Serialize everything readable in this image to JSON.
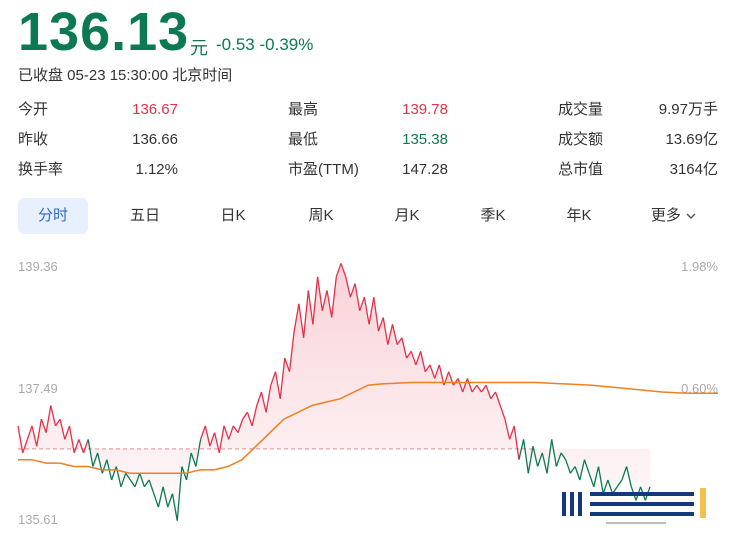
{
  "quote": {
    "price": "136.13",
    "unit": "元",
    "change": "-0.53",
    "change_pct": "-0.39%",
    "status": "已收盘 05-23 15:30:00 北京时间"
  },
  "stats": [
    {
      "label": "今开",
      "value": "136.67"
    },
    {
      "label": "最高",
      "value": "139.78"
    },
    {
      "label": "成交量",
      "value": "9.97万手"
    },
    {
      "label": "昨收",
      "value": "136.66"
    },
    {
      "label": "最低",
      "value": "135.38"
    },
    {
      "label": "成交额",
      "value": "13.69亿"
    },
    {
      "label": "换手率",
      "value": "1.12%"
    },
    {
      "label": "市盈(TTM)",
      "value": "147.28"
    },
    {
      "label": "总市值",
      "value": "3164亿"
    }
  ],
  "tabs": [
    "分时",
    "五日",
    "日K",
    "周K",
    "月K",
    "季K",
    "年K",
    "更多"
  ],
  "colors": {
    "up": "#e2314a",
    "down": "#0b7a52",
    "avg": "#f07f1f",
    "tab_active": "#2f68d8"
  },
  "chart_data": {
    "type": "line",
    "y_left_ticks": [
      "139.36",
      "137.49",
      "135.61"
    ],
    "y_right_ticks": [
      "1.98%",
      "0.60%"
    ],
    "ylim": [
      135.61,
      139.36
    ],
    "prev_close": 136.66,
    "series": [
      {
        "values": [
          137.0,
          136.6,
          136.8,
          137.0,
          136.7,
          137.1,
          136.9,
          137.3,
          137.0,
          137.1,
          136.8,
          137.0,
          136.6,
          136.8,
          136.6,
          136.8,
          136.4,
          136.6,
          136.3,
          136.5,
          136.2,
          136.4,
          136.1,
          136.3,
          136.2,
          136.1,
          136.3,
          136.1,
          136.2,
          136.0,
          135.8,
          136.1,
          135.8,
          136.0,
          135.6,
          136.4,
          136.2,
          136.6,
          136.4,
          136.8,
          137.0,
          136.7,
          136.9,
          136.6,
          137.0,
          136.8,
          137.0,
          136.9,
          137.1,
          137.2,
          137.0,
          137.3,
          137.5,
          137.2,
          137.6,
          137.8,
          137.4,
          138.0,
          137.8,
          138.4,
          138.8,
          138.3,
          139.0,
          138.5,
          139.2,
          138.7,
          139.0,
          138.6,
          139.2,
          139.4,
          139.2,
          138.9,
          139.1,
          138.7,
          138.9,
          138.5,
          138.9,
          138.4,
          138.6,
          138.2,
          138.5,
          138.2,
          138.3,
          138.0,
          138.1,
          137.9,
          138.1,
          137.8,
          137.9,
          137.7,
          137.9,
          137.6,
          137.8,
          137.6,
          137.7,
          137.5,
          137.7,
          137.5,
          137.6,
          137.5,
          137.6,
          137.4,
          137.5,
          137.3,
          137.1,
          136.8,
          137.0,
          136.5,
          136.8,
          136.3,
          136.7,
          136.4,
          136.6,
          136.3,
          136.8,
          136.4,
          136.6,
          136.5,
          136.3,
          136.4,
          136.2,
          136.5,
          136.3,
          136.1,
          136.4,
          136.0,
          136.2,
          136.0,
          136.1,
          136.2,
          136.4,
          136.1,
          135.9,
          136.1,
          135.9,
          136.1
        ]
      },
      {
        "values": [
          136.5,
          136.5,
          136.45,
          136.45,
          136.4,
          136.4,
          136.35,
          136.35,
          136.3,
          136.3,
          136.3,
          136.3,
          136.3,
          136.35,
          136.35,
          136.4,
          136.5,
          136.7,
          136.9,
          137.1,
          137.2,
          137.3,
          137.35,
          137.4,
          137.5,
          137.6,
          137.62,
          137.63,
          137.64,
          137.64,
          137.64,
          137.64,
          137.64,
          137.64,
          137.64,
          137.64,
          137.64,
          137.64,
          137.63,
          137.62,
          137.61,
          137.6,
          137.58,
          137.56,
          137.54,
          137.52,
          137.5,
          137.49,
          137.48,
          137.48,
          137.48
        ]
      }
    ]
  }
}
